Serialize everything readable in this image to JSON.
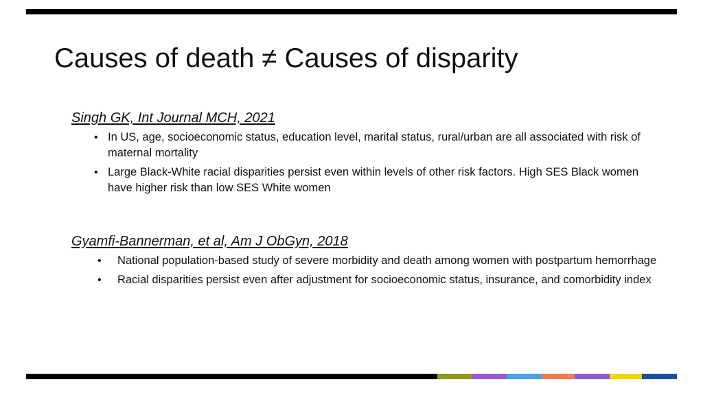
{
  "slide": {
    "title": "Causes of death ≠ Causes of disparity"
  },
  "sections": [
    {
      "citation": "Singh GK, Int Journal MCH, 2021",
      "bullets": [
        "In US, age, socioeconomic status, education level, marital status, rural/urban are all associated with risk of maternal mortality",
        "Large Black-White racial disparities persist even within levels of other risk factors. High SES Black women have higher risk than low SES White women"
      ]
    },
    {
      "citation": "Gyamfi-Bannerman, et al, Am J ObGyn, 2018",
      "bullets": [
        "National population-based study of severe morbidity and death among women with postpartum hemorrhage",
        "Racial disparities persist even after adjustment for socioeconomic status, insurance, and comorbidity index"
      ]
    }
  ],
  "bullet_glyph": "•",
  "colors": {
    "rule": "#000000",
    "accent_bar": [
      "#8e9a1e",
      "#9b59d0",
      "#4aa3e0",
      "#f07a50",
      "#8a5bd6",
      "#f2d400",
      "#1a4f9c"
    ]
  }
}
